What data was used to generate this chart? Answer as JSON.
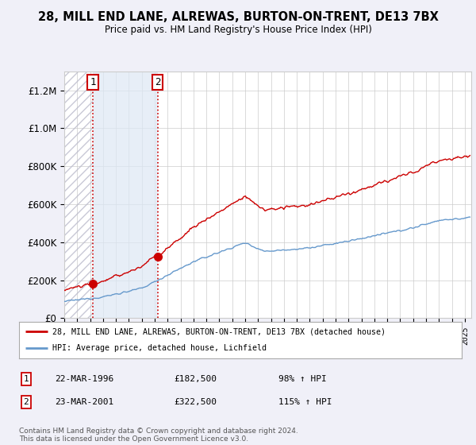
{
  "title": "28, MILL END LANE, ALREWAS, BURTON-ON-TRENT, DE13 7BX",
  "subtitle": "Price paid vs. HM Land Registry's House Price Index (HPI)",
  "legend_line1": "28, MILL END LANE, ALREWAS, BURTON-ON-TRENT, DE13 7BX (detached house)",
  "legend_line2": "HPI: Average price, detached house, Lichfield",
  "transaction1_date": "22-MAR-1996",
  "transaction1_price": "£182,500",
  "transaction1_hpi": "98% ↑ HPI",
  "transaction1_year": 1996.22,
  "transaction1_value": 182500,
  "transaction2_date": "23-MAR-2001",
  "transaction2_price": "£322,500",
  "transaction2_hpi": "115% ↑ HPI",
  "transaction2_year": 2001.22,
  "transaction2_value": 322500,
  "footnote": "Contains HM Land Registry data © Crown copyright and database right 2024.\nThis data is licensed under the Open Government Licence v3.0.",
  "ylim": [
    0,
    1300000
  ],
  "xlim_start": 1994,
  "xlim_end": 2025.5,
  "hatch_end_year": 1996.22,
  "shade_end_year": 2001.22,
  "bg_color": "#f0f0f8",
  "plot_bg": "#ffffff",
  "red_color": "#cc0000",
  "blue_color": "#6699cc",
  "hatch_color": "#bbbbcc",
  "shade_color": "#dde8f5"
}
